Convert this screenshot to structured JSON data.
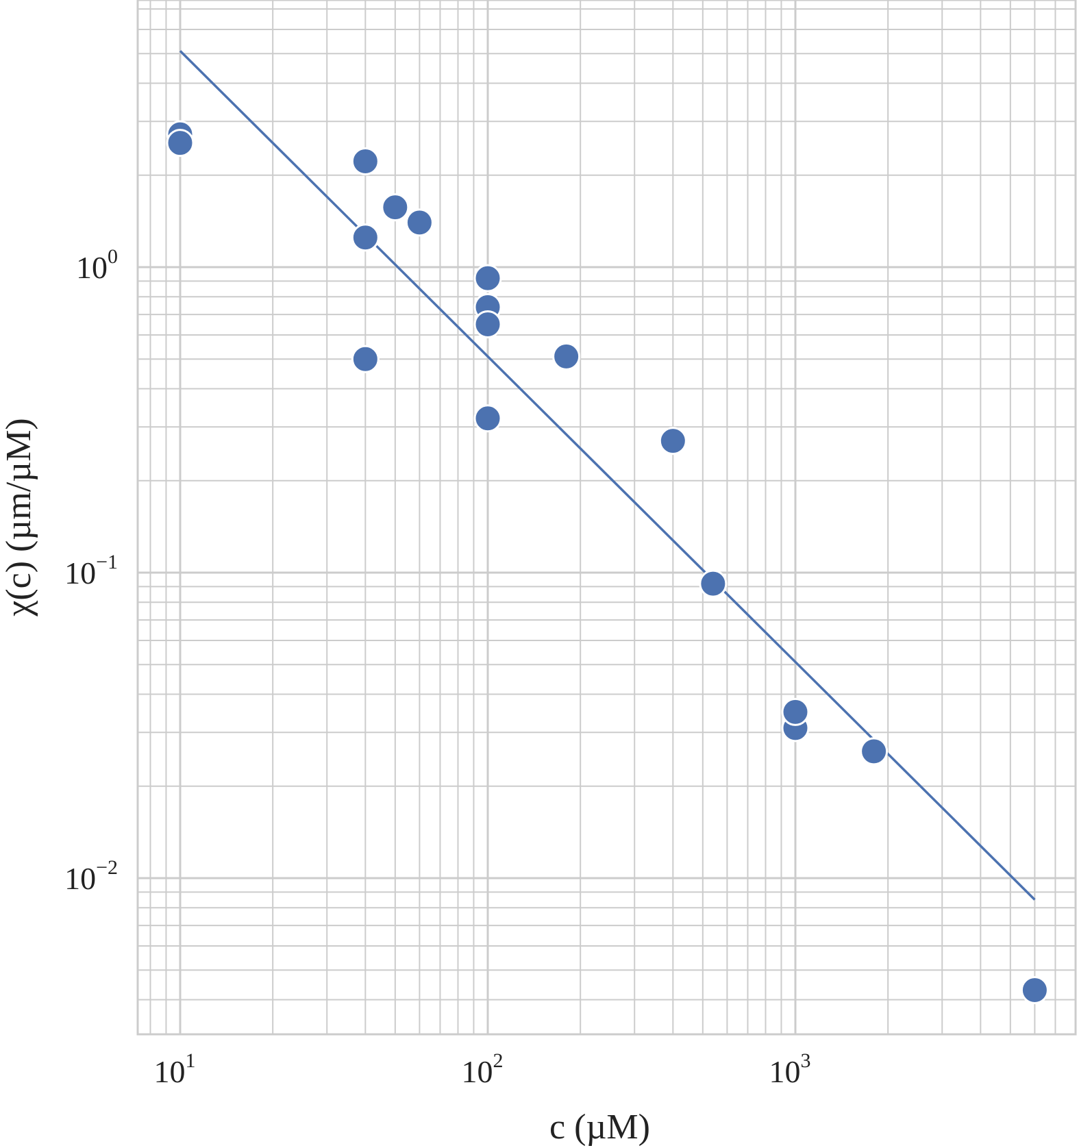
{
  "chart_data": {
    "type": "scatter",
    "title": "",
    "xlabel": "c (µM)",
    "ylabel": "χ(c) (µm/µM)",
    "xscale": "log",
    "yscale": "log",
    "xlim": [
      6.9,
      7500
    ],
    "ylim": [
      0.0025,
      7.6
    ],
    "grid": true,
    "grid_minor": true,
    "legend": "none",
    "x_ticks": [
      {
        "value": 10,
        "base": "10",
        "exp": "1"
      },
      {
        "value": 100,
        "base": "10",
        "exp": "2"
      },
      {
        "value": 1000,
        "base": "10",
        "exp": "3"
      }
    ],
    "y_ticks": [
      {
        "value": 1,
        "base": "10",
        "exp": "0"
      },
      {
        "value": 0.1,
        "base": "10",
        "exp": "−1"
      },
      {
        "value": 0.01,
        "base": "10",
        "exp": "−2"
      }
    ],
    "series": [
      {
        "type": "scatter",
        "color": "#4c72b0",
        "points": [
          {
            "x": 10,
            "y": 2.72
          },
          {
            "x": 10,
            "y": 2.55
          },
          {
            "x": 40,
            "y": 2.22
          },
          {
            "x": 50,
            "y": 1.57
          },
          {
            "x": 60,
            "y": 1.4
          },
          {
            "x": 40,
            "y": 1.25
          },
          {
            "x": 100,
            "y": 0.92
          },
          {
            "x": 100,
            "y": 0.74
          },
          {
            "x": 100,
            "y": 0.65
          },
          {
            "x": 40,
            "y": 0.5
          },
          {
            "x": 180,
            "y": 0.51
          },
          {
            "x": 100,
            "y": 0.32
          },
          {
            "x": 400,
            "y": 0.27
          },
          {
            "x": 540,
            "y": 0.092
          },
          {
            "x": 1000,
            "y": 0.031
          },
          {
            "x": 1000,
            "y": 0.035
          },
          {
            "x": 1800,
            "y": 0.026
          },
          {
            "x": 6000,
            "y": 0.0043
          }
        ]
      },
      {
        "type": "line",
        "color": "#4c72b0",
        "points": [
          {
            "x": 10,
            "y": 5.1
          },
          {
            "x": 6000,
            "y": 0.0085
          }
        ]
      }
    ]
  }
}
